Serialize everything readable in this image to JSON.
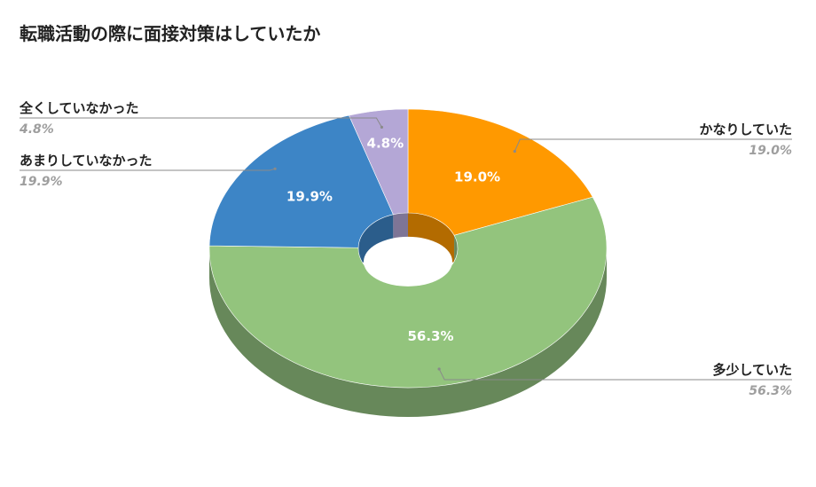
{
  "chart_data": {
    "type": "pie",
    "variant": "3d-donut",
    "title": "転職活動の際に面接対策はしていたか",
    "categories": [
      "かなりしていた",
      "多少していた",
      "あまりしていなかった",
      "全くしていなかった"
    ],
    "values": [
      19.0,
      56.3,
      19.9,
      4.8
    ],
    "value_labels": [
      "19.0%",
      "56.3%",
      "19.9%",
      "4.8%"
    ],
    "legend_placement": "outside-labels",
    "colors": {
      "top": [
        "#ff9900",
        "#93c47d",
        "#3d85c6",
        "#b4a7d6"
      ],
      "side": [
        "#b36b00",
        "#67885a",
        "#2b5d8b",
        "#7e7596"
      ]
    }
  }
}
